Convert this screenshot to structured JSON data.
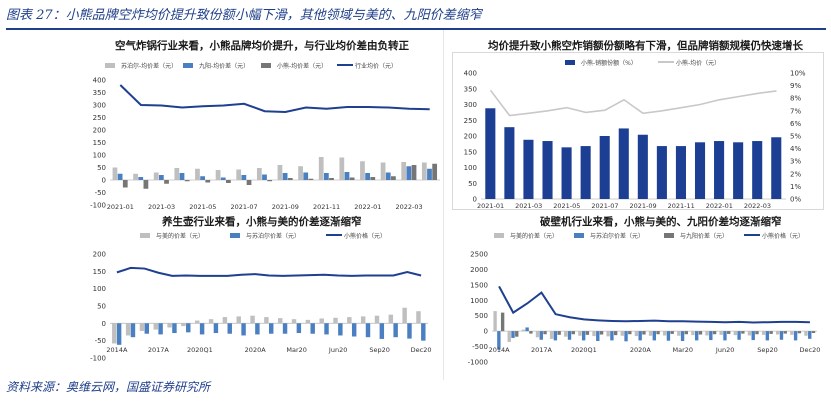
{
  "header": {
    "title": "图表 27：小熊品牌空炸均价提升致份额小幅下滑，其他领域与美的、九阳价差缩窄"
  },
  "footer": {
    "source": "资料来源：奥维云网，国盛证券研究所"
  },
  "colors": {
    "gray": "#bfbfbf",
    "blue": "#4a7fc1",
    "dark": "#767676",
    "navy": "#1f3f8f",
    "light": "#c8c8c8",
    "bar_navy": "#1c3f94"
  },
  "chart_data": [
    {
      "id": "air_fryer",
      "type": "bar",
      "title": "空气炸锅行业来看，小熊品牌均价提升，与行业均价差由负转正",
      "categories": [
        "2021-01",
        "2021-02",
        "2021-03",
        "2021-04",
        "2021-05",
        "2021-06",
        "2021-07",
        "2021-08",
        "2021-09",
        "2021-10",
        "2021-11",
        "2021-12",
        "2022-01",
        "2022-02",
        "2022-03",
        "2022-04"
      ],
      "tick_labels": [
        "2021-01",
        "2021-03",
        "2021-05",
        "2021-07",
        "2021-09",
        "2021-11",
        "2022-01",
        "2022-03"
      ],
      "ylim": [
        -100,
        400
      ],
      "yticks": [
        -100,
        -50,
        0,
        50,
        100,
        150,
        200,
        250,
        300,
        350,
        400
      ],
      "legend": [
        "苏泊尔-均价差（元）",
        "九阳-均价差（元）",
        "小熊-均价差（元）",
        "行业均价（元）"
      ],
      "series": [
        {
          "name": "苏泊尔-均价差（元）",
          "kind": "bar",
          "color": "#bfbfbf",
          "values": [
            50,
            25,
            30,
            48,
            45,
            40,
            42,
            48,
            60,
            55,
            92,
            90,
            75,
            70,
            72,
            70
          ]
        },
        {
          "name": "九阳-均价差（元）",
          "kind": "bar",
          "color": "#4a7fc1",
          "values": [
            25,
            12,
            20,
            28,
            15,
            10,
            20,
            22,
            28,
            30,
            28,
            32,
            28,
            30,
            55,
            45
          ]
        },
        {
          "name": "小熊-均价差（元）",
          "kind": "bar",
          "color": "#767676",
          "values": [
            -30,
            -35,
            -15,
            -5,
            -10,
            -12,
            -20,
            -5,
            8,
            5,
            8,
            10,
            12,
            15,
            60,
            65
          ]
        },
        {
          "name": "行业均价（元）",
          "kind": "line",
          "color": "#1f3f8f",
          "values": [
            380,
            300,
            298,
            290,
            295,
            298,
            305,
            275,
            272,
            290,
            285,
            292,
            292,
            290,
            285,
            283
          ]
        }
      ]
    },
    {
      "id": "share",
      "type": "bar",
      "title": "均价提升致小熊空炸销额份额略有下滑，但品牌销额规模仍快速增长",
      "categories": [
        "2021-01",
        "2021-02",
        "2021-03",
        "2021-04",
        "2021-05",
        "2021-06",
        "2021-07",
        "2021-08",
        "2021-09",
        "2021-10",
        "2021-11",
        "2021-12",
        "2022-01",
        "2022-02",
        "2022-03",
        "2022-04"
      ],
      "tick_labels": [
        "2021-01",
        "2021-03",
        "2021-05",
        "2021-07",
        "2021-09",
        "2021-11",
        "2022-01",
        "2022-03"
      ],
      "ylim": [
        0,
        400
      ],
      "yticks": [
        0,
        50,
        100,
        150,
        200,
        250,
        300,
        350,
        400
      ],
      "y2lim": [
        0,
        10
      ],
      "y2ticks": [
        "0%",
        "1%",
        "2%",
        "3%",
        "4%",
        "5%",
        "6%",
        "7%",
        "8%",
        "9%",
        "10%"
      ],
      "legend": [
        "小熊-销额份额（%）",
        "小熊-均价（元）"
      ],
      "series": [
        {
          "name": "小熊-销额份额（%）",
          "kind": "bar",
          "color": "#1c3f94",
          "axis": "right",
          "values": [
            7.2,
            5.7,
            4.7,
            4.6,
            4.1,
            4.2,
            5.0,
            5.6,
            5.1,
            4.2,
            4.2,
            4.5,
            4.6,
            4.5,
            4.6,
            4.9
          ]
        },
        {
          "name": "小熊-均价（元）",
          "kind": "line",
          "color": "#c8c8c8",
          "axis": "left",
          "values": [
            345,
            265,
            272,
            280,
            290,
            275,
            282,
            315,
            272,
            280,
            290,
            300,
            315,
            325,
            335,
            343
          ]
        }
      ]
    },
    {
      "id": "health_pot",
      "type": "bar",
      "title": "养生壶行业来看，小熊与美的价差逐渐缩窄",
      "categories": [
        "2014A",
        "2015A",
        "2016A",
        "2017A",
        "2018A",
        "2019A",
        "2020Q1",
        "2020Q2",
        "2020Q3",
        "2020Q4",
        "2020A",
        "Jan20",
        "Feb20",
        "Mar20",
        "Apr20",
        "May20",
        "Jun20",
        "Jul20",
        "Aug20",
        "Sep20",
        "Oct20",
        "Nov20",
        "Dec20"
      ],
      "tick_labels": [
        "2014A",
        "",
        "",
        "2017A",
        "",
        "",
        "2020Q1",
        "",
        "",
        "",
        "2020A",
        "",
        "",
        "Mar20",
        "",
        "",
        "Jun20",
        "",
        "",
        "Sep20",
        "",
        "",
        "Dec20"
      ],
      "ylim": [
        -100,
        200
      ],
      "yticks": [
        -100,
        -50,
        0,
        50,
        100,
        150,
        200
      ],
      "legend": [
        "与美的价差（元）",
        "与苏泊尔价差（元）",
        "小熊价格（元）"
      ],
      "series": [
        {
          "name": "与美的价差（元）",
          "kind": "bar",
          "color": "#bfbfbf",
          "values": [
            -58,
            -35,
            -22,
            -18,
            -12,
            -8,
            8,
            12,
            18,
            20,
            22,
            18,
            15,
            12,
            10,
            14,
            16,
            18,
            20,
            22,
            25,
            45,
            35
          ]
        },
        {
          "name": "与苏泊尔价差（元）",
          "kind": "bar",
          "color": "#4a7fc1",
          "values": [
            -62,
            -40,
            -30,
            -32,
            -28,
            -26,
            -32,
            -28,
            -30,
            -35,
            -32,
            -30,
            -30,
            -28,
            -30,
            -32,
            -35,
            -38,
            -40,
            -45,
            -40,
            -44,
            -50
          ]
        },
        {
          "name": "小熊价格（元）",
          "kind": "line",
          "color": "#1f3f8f",
          "values": [
            147,
            160,
            158,
            146,
            137,
            138,
            137,
            137,
            137,
            140,
            142,
            138,
            137,
            138,
            139,
            140,
            138,
            137,
            138,
            138,
            138,
            148,
            138
          ]
        }
      ]
    },
    {
      "id": "blender",
      "type": "bar",
      "title": "破壁机行业来看，小熊与美的、九阳价差均逐渐缩窄",
      "categories": [
        "2014A",
        "2015A",
        "2016A",
        "2017A",
        "2018A",
        "2019A",
        "2020Q1",
        "2020Q2",
        "2020Q3",
        "2020Q4",
        "2020A",
        "Jan20",
        "Feb20",
        "Mar20",
        "Apr20",
        "May20",
        "Jun20",
        "Jul20",
        "Aug20",
        "Sep20",
        "Oct20",
        "Nov20",
        "Dec20"
      ],
      "tick_labels": [
        "2014A",
        "",
        "",
        "2017A",
        "",
        "",
        "2020Q1",
        "",
        "",
        "",
        "2020A",
        "",
        "",
        "Mar20",
        "",
        "",
        "Jun20",
        "",
        "",
        "Sep20",
        "",
        "",
        "Dec20"
      ],
      "ylim": [
        -1000,
        2500
      ],
      "yticks": [
        -1000,
        -500,
        0,
        500,
        1000,
        1500,
        2000,
        2500
      ],
      "legend": [
        "与美的价差（元）",
        "与苏泊尔价差（元）",
        "与九阳价差（元）",
        "小熊价格（元）"
      ],
      "series": [
        {
          "name": "与美的价差（元）",
          "kind": "bar",
          "color": "#bfbfbf",
          "values": [
            650,
            -350,
            50,
            -200,
            -250,
            -180,
            -150,
            -160,
            -170,
            -150,
            -160,
            -150,
            -140,
            -150,
            -130,
            -140,
            -120,
            -130,
            -140,
            -120,
            -110,
            -120,
            -150
          ]
        },
        {
          "name": "与苏泊尔价差（元）",
          "kind": "bar",
          "color": "#4a7fc1",
          "values": [
            -600,
            -220,
            120,
            -280,
            -300,
            -280,
            -300,
            -320,
            -300,
            -330,
            -300,
            -300,
            -310,
            -320,
            -300,
            -290,
            -300,
            -280,
            -290,
            -300,
            -280,
            -300,
            -250
          ]
        },
        {
          "name": "与九阳价差（元）",
          "kind": "bar",
          "color": "#767676",
          "values": [
            600,
            -180,
            -80,
            -100,
            -120,
            -100,
            -120,
            -110,
            -130,
            -100,
            -110,
            -100,
            -90,
            -100,
            -110,
            -100,
            -90,
            -80,
            -100,
            -90,
            -80,
            -70,
            -60
          ]
        },
        {
          "name": "小熊价格（元）",
          "kind": "line",
          "color": "#1f3f8f",
          "values": [
            1450,
            600,
            900,
            1250,
            550,
            450,
            380,
            350,
            330,
            320,
            330,
            340,
            320,
            320,
            310,
            300,
            290,
            300,
            280,
            290,
            300,
            300,
            290
          ]
        }
      ]
    }
  ]
}
